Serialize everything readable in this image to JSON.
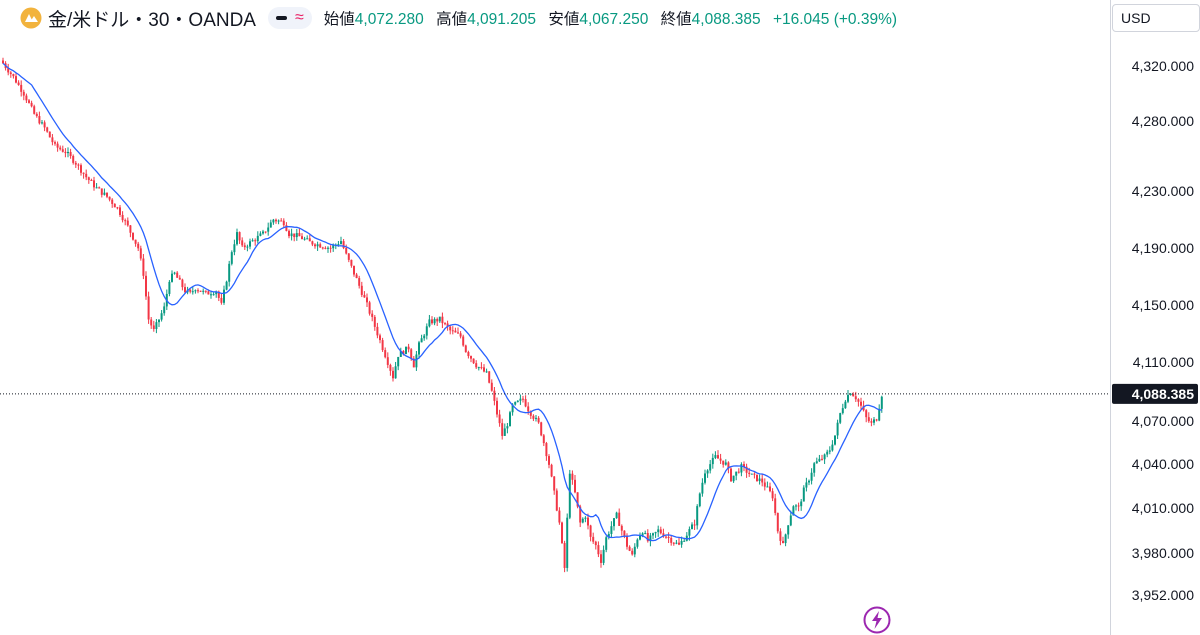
{
  "header": {
    "symbol": "金/米ドル・30・OANDA",
    "open_label": "始値",
    "open_value": "4,072.280",
    "high_label": "高値",
    "high_value": "4,091.205",
    "low_label": "安値",
    "low_value": "4,067.250",
    "close_label": "終値",
    "close_value": "4,088.385",
    "change": "+16.045 (+0.39%)"
  },
  "currency": "USD",
  "colors": {
    "up": "#089981",
    "down": "#f23645",
    "ma_line": "#2962ff",
    "price_label_bg": "#131722",
    "accent_pink": "#e91e63",
    "flash_purple": "#9c27b0"
  },
  "chart_data": {
    "type": "candlestick",
    "y_ticks": [
      {
        "value": 4320,
        "label": "4,320.000"
      },
      {
        "value": 4280,
        "label": "4,280.000"
      },
      {
        "value": 4230,
        "label": "4,230.000"
      },
      {
        "value": 4190,
        "label": "4,190.000"
      },
      {
        "value": 4150,
        "label": "4,150.000"
      },
      {
        "value": 4110,
        "label": "4,110.000"
      },
      {
        "value": 4070,
        "label": "4,070.000"
      },
      {
        "value": 4040,
        "label": "4,040.000"
      },
      {
        "value": 4010,
        "label": "4,010.000"
      },
      {
        "value": 3980,
        "label": "3,980.000"
      },
      {
        "value": 3952,
        "label": "3,952.000"
      }
    ],
    "current_price": {
      "value": 4088.385,
      "label": "4,088.385"
    },
    "price_path": [
      [
        0,
        4322
      ],
      [
        4,
        4312
      ],
      [
        8,
        4300
      ],
      [
        12,
        4285
      ],
      [
        16,
        4275
      ],
      [
        20,
        4262
      ],
      [
        24,
        4258
      ],
      [
        28,
        4250
      ],
      [
        32,
        4240
      ],
      [
        36,
        4232
      ],
      [
        40,
        4226
      ],
      [
        44,
        4218
      ],
      [
        48,
        4205
      ],
      [
        52,
        4190
      ],
      [
        54,
        4172
      ],
      [
        56,
        4140
      ],
      [
        58,
        4132
      ],
      [
        62,
        4148
      ],
      [
        64,
        4168
      ],
      [
        66,
        4172
      ],
      [
        70,
        4160
      ],
      [
        72,
        4158
      ],
      [
        74,
        4162
      ],
      [
        78,
        4158
      ],
      [
        82,
        4160
      ],
      [
        84,
        4150
      ],
      [
        86,
        4168
      ],
      [
        88,
        4188
      ],
      [
        90,
        4200
      ],
      [
        92,
        4190
      ],
      [
        96,
        4195
      ],
      [
        100,
        4200
      ],
      [
        104,
        4210
      ],
      [
        108,
        4208
      ],
      [
        110,
        4200
      ],
      [
        114,
        4198
      ],
      [
        118,
        4194
      ],
      [
        122,
        4192
      ],
      [
        126,
        4190
      ],
      [
        130,
        4195
      ],
      [
        132,
        4185
      ],
      [
        136,
        4168
      ],
      [
        140,
        4150
      ],
      [
        144,
        4130
      ],
      [
        146,
        4120
      ],
      [
        148,
        4110
      ],
      [
        150,
        4100
      ],
      [
        152,
        4115
      ],
      [
        156,
        4120
      ],
      [
        158,
        4108
      ],
      [
        160,
        4122
      ],
      [
        164,
        4138
      ],
      [
        168,
        4140
      ],
      [
        172,
        4132
      ],
      [
        176,
        4128
      ],
      [
        178,
        4118
      ],
      [
        182,
        4108
      ],
      [
        186,
        4102
      ],
      [
        188,
        4090
      ],
      [
        190,
        4075
      ],
      [
        192,
        4060
      ],
      [
        194,
        4068
      ],
      [
        196,
        4080
      ],
      [
        200,
        4085
      ],
      [
        202,
        4078
      ],
      [
        206,
        4068
      ],
      [
        208,
        4055
      ],
      [
        210,
        4040
      ],
      [
        212,
        4020
      ],
      [
        214,
        4000
      ],
      [
        216,
        3970
      ],
      [
        218,
        4035
      ],
      [
        220,
        4020
      ],
      [
        222,
        4000
      ],
      [
        224,
        4005
      ],
      [
        226,
        3990
      ],
      [
        228,
        3985
      ],
      [
        230,
        3975
      ],
      [
        232,
        3990
      ],
      [
        234,
        3998
      ],
      [
        236,
        4005
      ],
      [
        238,
        3995
      ],
      [
        240,
        3985
      ],
      [
        242,
        3978
      ],
      [
        244,
        3990
      ],
      [
        246,
        3995
      ],
      [
        248,
        3988
      ],
      [
        252,
        3995
      ],
      [
        256,
        3990
      ],
      [
        260,
        3985
      ],
      [
        262,
        3990
      ],
      [
        264,
        3995
      ],
      [
        266,
        4000
      ],
      [
        268,
        4020
      ],
      [
        270,
        4035
      ],
      [
        274,
        4045
      ],
      [
        278,
        4040
      ],
      [
        280,
        4030
      ],
      [
        284,
        4038
      ],
      [
        288,
        4032
      ],
      [
        292,
        4028
      ],
      [
        296,
        4018
      ],
      [
        298,
        3995
      ],
      [
        300,
        3985
      ],
      [
        302,
        4000
      ],
      [
        304,
        4012
      ],
      [
        306,
        4010
      ],
      [
        308,
        4022
      ],
      [
        310,
        4030
      ],
      [
        312,
        4040
      ],
      [
        316,
        4045
      ],
      [
        318,
        4050
      ],
      [
        320,
        4060
      ],
      [
        322,
        4075
      ],
      [
        324,
        4085
      ],
      [
        326,
        4090
      ],
      [
        328,
        4086
      ],
      [
        330,
        4080
      ],
      [
        332,
        4072
      ],
      [
        334,
        4068
      ],
      [
        336,
        4072
      ],
      [
        338,
        4088
      ]
    ]
  }
}
